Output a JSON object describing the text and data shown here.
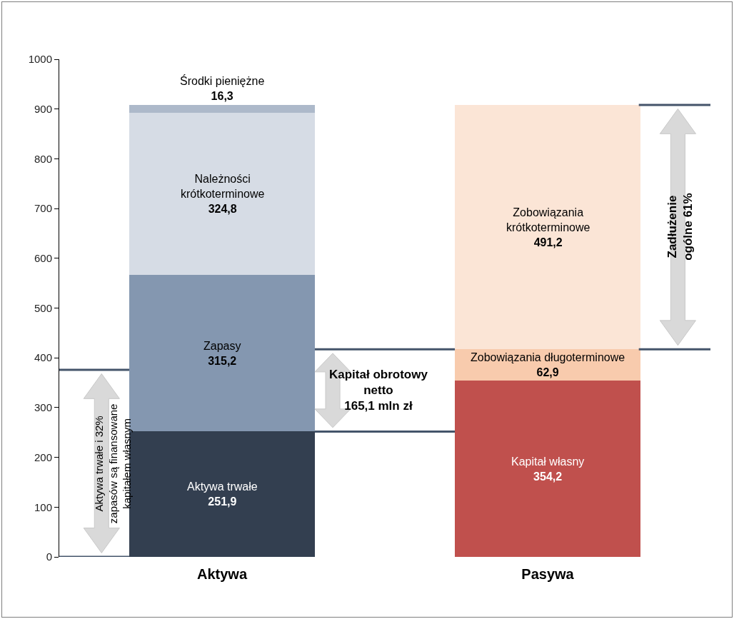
{
  "chart_data": {
    "type": "bar",
    "stacked": true,
    "categories": [
      "Aktywa",
      "Pasywa"
    ],
    "ylim": [
      0,
      1000
    ],
    "yticks": [
      0,
      100,
      200,
      300,
      400,
      500,
      600,
      700,
      800,
      900,
      1000
    ],
    "grid": false,
    "legend": false,
    "series": [
      {
        "name": "Aktywa trwałe",
        "color": "#333f50",
        "values": [
          251.9,
          null
        ],
        "value_labels": [
          "251,9",
          null
        ]
      },
      {
        "name": "Zapasy",
        "color": "#8497b0",
        "values": [
          315.2,
          null
        ],
        "value_labels": [
          "315,2",
          null
        ]
      },
      {
        "name": "Należności\nkrótkoterminowe",
        "color": "#d6dce5",
        "values": [
          324.8,
          null
        ],
        "value_labels": [
          "324,8",
          null
        ]
      },
      {
        "name": "Środki pieniężne",
        "color": "#adb9ca",
        "values": [
          16.3,
          null
        ],
        "value_labels": [
          "16,3",
          null
        ]
      },
      {
        "name": "Kapitał własny",
        "color": "#c0504d",
        "values": [
          null,
          354.2
        ],
        "value_labels": [
          null,
          "354,2"
        ]
      },
      {
        "name": "Zobowiązania długoterminowe",
        "color": "#f8cbad",
        "values": [
          null,
          62.9
        ],
        "value_labels": [
          null,
          "62,9"
        ]
      },
      {
        "name": "Zobowiązania\nkrótkoterminowe",
        "color": "#fbe5d6",
        "values": [
          null,
          491.2
        ],
        "value_labels": [
          null,
          "491,2"
        ]
      }
    ],
    "ref_lines": [
      {
        "axis": "y",
        "value": 0,
        "color": "#44546a"
      },
      {
        "axis": "y",
        "value": 376,
        "color": "#44546a"
      },
      {
        "axis": "y",
        "value": 251.9,
        "color": "#44546a"
      },
      {
        "axis": "y",
        "value": 417.1,
        "color": "#44546a"
      },
      {
        "axis": "y",
        "value": 908.3,
        "color": "#44546a"
      }
    ],
    "annotations": [
      "Aktywa trwałe i 32%\nzapasów są finansowane\nkapitałem własnym",
      "Kapitał obrotowy\nnetto\n165,1 mln zł",
      "Zadłużenie\nogólne 61%"
    ]
  }
}
